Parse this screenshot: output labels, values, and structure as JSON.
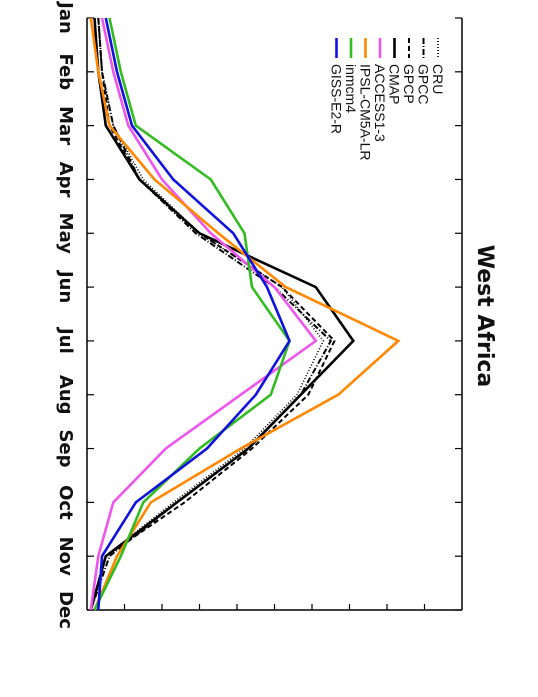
{
  "chart_data": {
    "type": "line",
    "title": "West Africa",
    "orientation": "rotated-90-clockwise",
    "categories": [
      "Jan",
      "Feb",
      "Mar",
      "Apr",
      "May",
      "Jun",
      "Jul",
      "Aug",
      "Sep",
      "Oct",
      "Nov",
      "Dec"
    ],
    "ylim": [
      0,
      100
    ],
    "grid": false,
    "legend_position": "top-right",
    "series": [
      {
        "name": "CRU",
        "color": "#000000",
        "dash": "1,2",
        "width": 1.6,
        "values": [
          3,
          4,
          7,
          15,
          30,
          52,
          63,
          56,
          42,
          23,
          5,
          1
        ]
      },
      {
        "name": "GPCC",
        "color": "#000000",
        "dash": "6,2,1,2",
        "width": 2,
        "values": [
          3,
          4,
          7,
          14,
          29,
          50,
          65,
          57,
          43,
          24,
          6,
          1
        ]
      },
      {
        "name": "GPCP",
        "color": "#000000",
        "dash": "5,3",
        "width": 2,
        "values": [
          3,
          4,
          6,
          14,
          30,
          52,
          66,
          59,
          44,
          26,
          5,
          1
        ]
      },
      {
        "name": "CMAP",
        "color": "#000000",
        "dash": "",
        "width": 2.6,
        "values": [
          2,
          3,
          5,
          14,
          30,
          61,
          71,
          57,
          43,
          24,
          5,
          1
        ]
      },
      {
        "name": "ACCESS1-3",
        "color": "#ee55ee",
        "dash": "",
        "width": 2.6,
        "values": [
          4,
          7,
          11,
          20,
          33,
          50,
          61,
          41,
          21,
          7,
          3,
          1
        ]
      },
      {
        "name": "IPSL-CM5A-LR",
        "color": "#ff8800",
        "dash": "",
        "width": 2.6,
        "values": [
          1,
          3,
          6,
          18,
          35,
          53,
          83,
          67,
          41,
          17,
          8,
          2
        ]
      },
      {
        "name": "inmcm4",
        "color": "#33bb22",
        "dash": "",
        "width": 2.6,
        "values": [
          6,
          9,
          13,
          33,
          42,
          44,
          54,
          49,
          30,
          15,
          9,
          2
        ]
      },
      {
        "name": "GISS-E2-R",
        "color": "#1111dd",
        "dash": "",
        "width": 2.6,
        "values": [
          5,
          8,
          12,
          23,
          39,
          48,
          54,
          45,
          32,
          13,
          4,
          3
        ]
      }
    ]
  }
}
